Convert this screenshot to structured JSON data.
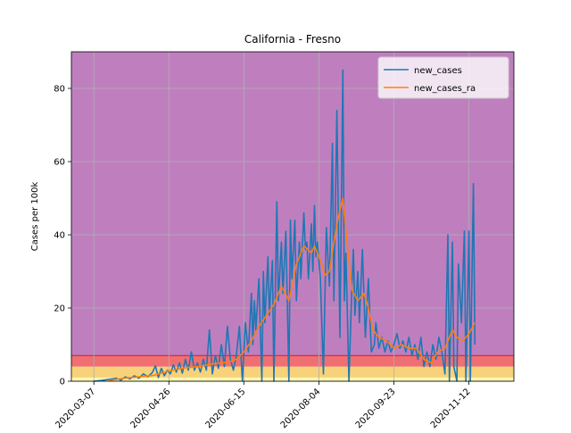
{
  "chart_data": {
    "type": "line",
    "title": "California - Fresno",
    "xlabel": "",
    "ylabel": "Cases per 100k",
    "x_axis": {
      "type": "date",
      "range": [
        "2020-02-21",
        "2020-12-12"
      ],
      "tick_labels": [
        "2020-03-07",
        "2020-04-26",
        "2020-06-15",
        "2020-08-04",
        "2020-09-23",
        "2020-11-12"
      ]
    },
    "ylim": [
      0,
      90
    ],
    "y_ticks": [
      0,
      20,
      40,
      60,
      80
    ],
    "grid": true,
    "legend": {
      "placement": "top-right",
      "entries": [
        "new_cases",
        "new_cases_ra"
      ]
    },
    "background_bands": [
      {
        "from": 0,
        "to": 1,
        "color": "#fff9b0"
      },
      {
        "from": 1,
        "to": 4,
        "color": "#f7d27a"
      },
      {
        "from": 4,
        "to": 7,
        "color": "#ef6f73"
      },
      {
        "from": 7,
        "to": 90,
        "color": "#bf7fbf"
      }
    ],
    "band_edge_color": "#d62728",
    "series": [
      {
        "name": "new_cases",
        "color": "#1f77b4",
        "points": [
          [
            "2020-03-07",
            0
          ],
          [
            "2020-03-12",
            0.2
          ],
          [
            "2020-03-17",
            0.5
          ],
          [
            "2020-03-22",
            0.8
          ],
          [
            "2020-03-25",
            0.3
          ],
          [
            "2020-03-28",
            1.2
          ],
          [
            "2020-03-31",
            0.6
          ],
          [
            "2020-04-03",
            1.5
          ],
          [
            "2020-04-06",
            0.8
          ],
          [
            "2020-04-09",
            2
          ],
          [
            "2020-04-12",
            1.2
          ],
          [
            "2020-04-15",
            2.4
          ],
          [
            "2020-04-17",
            4.2
          ],
          [
            "2020-04-19",
            1
          ],
          [
            "2020-04-21",
            3.5
          ],
          [
            "2020-04-23",
            1.5
          ],
          [
            "2020-04-25",
            3
          ],
          [
            "2020-04-27",
            2
          ],
          [
            "2020-04-29",
            4.5
          ],
          [
            "2020-05-01",
            2.5
          ],
          [
            "2020-05-03",
            5
          ],
          [
            "2020-05-05",
            2.2
          ],
          [
            "2020-05-07",
            6
          ],
          [
            "2020-05-09",
            3
          ],
          [
            "2020-05-11",
            8
          ],
          [
            "2020-05-13",
            3
          ],
          [
            "2020-05-15",
            5
          ],
          [
            "2020-05-17",
            2.5
          ],
          [
            "2020-05-19",
            6
          ],
          [
            "2020-05-21",
            3
          ],
          [
            "2020-05-23",
            14
          ],
          [
            "2020-05-25",
            2
          ],
          [
            "2020-05-27",
            7
          ],
          [
            "2020-05-29",
            3.5
          ],
          [
            "2020-05-31",
            10
          ],
          [
            "2020-06-02",
            4
          ],
          [
            "2020-06-04",
            15
          ],
          [
            "2020-06-06",
            6
          ],
          [
            "2020-06-08",
            3
          ],
          [
            "2020-06-10",
            7
          ],
          [
            "2020-06-12",
            15
          ],
          [
            "2020-06-14",
            0
          ],
          [
            "2020-06-16",
            16
          ],
          [
            "2020-06-18",
            8
          ],
          [
            "2020-06-20",
            24
          ],
          [
            "2020-06-21",
            10
          ],
          [
            "2020-06-22",
            22
          ],
          [
            "2020-06-23",
            14
          ],
          [
            "2020-06-25",
            28
          ],
          [
            "2020-06-27",
            0
          ],
          [
            "2020-06-28",
            30
          ],
          [
            "2020-06-29",
            16
          ],
          [
            "2020-07-01",
            34
          ],
          [
            "2020-07-02",
            18
          ],
          [
            "2020-07-04",
            33
          ],
          [
            "2020-07-05",
            0
          ],
          [
            "2020-07-07",
            49
          ],
          [
            "2020-07-08",
            22
          ],
          [
            "2020-07-10",
            38
          ],
          [
            "2020-07-11",
            24
          ],
          [
            "2020-07-13",
            41
          ],
          [
            "2020-07-15",
            0
          ],
          [
            "2020-07-16",
            44
          ],
          [
            "2020-07-17",
            28
          ],
          [
            "2020-07-19",
            44
          ],
          [
            "2020-07-20",
            22
          ],
          [
            "2020-07-22",
            38
          ],
          [
            "2020-07-23",
            28
          ],
          [
            "2020-07-25",
            46
          ],
          [
            "2020-07-26",
            36
          ],
          [
            "2020-07-27",
            38
          ],
          [
            "2020-07-28",
            28
          ],
          [
            "2020-07-30",
            43
          ],
          [
            "2020-07-31",
            30
          ],
          [
            "2020-08-01",
            48
          ],
          [
            "2020-08-02",
            34
          ],
          [
            "2020-08-03",
            38
          ],
          [
            "2020-08-05",
            28
          ],
          [
            "2020-08-07",
            2
          ],
          [
            "2020-08-09",
            42
          ],
          [
            "2020-08-11",
            26
          ],
          [
            "2020-08-13",
            65
          ],
          [
            "2020-08-14",
            22
          ],
          [
            "2020-08-16",
            74
          ],
          [
            "2020-08-18",
            12
          ],
          [
            "2020-08-20",
            85
          ],
          [
            "2020-08-21",
            22
          ],
          [
            "2020-08-22",
            35
          ],
          [
            "2020-08-24",
            0
          ],
          [
            "2020-08-26",
            26
          ],
          [
            "2020-08-27",
            36
          ],
          [
            "2020-08-28",
            18
          ],
          [
            "2020-08-30",
            30
          ],
          [
            "2020-08-31",
            16
          ],
          [
            "2020-09-02",
            36
          ],
          [
            "2020-09-04",
            12
          ],
          [
            "2020-09-06",
            28
          ],
          [
            "2020-09-08",
            8
          ],
          [
            "2020-09-10",
            10
          ],
          [
            "2020-09-11",
            16
          ],
          [
            "2020-09-13",
            9
          ],
          [
            "2020-09-15",
            12
          ],
          [
            "2020-09-17",
            8
          ],
          [
            "2020-09-19",
            11
          ],
          [
            "2020-09-21",
            8
          ],
          [
            "2020-09-23",
            10
          ],
          [
            "2020-09-25",
            13
          ],
          [
            "2020-09-27",
            9
          ],
          [
            "2020-09-29",
            11
          ],
          [
            "2020-10-01",
            8
          ],
          [
            "2020-10-03",
            12
          ],
          [
            "2020-10-05",
            7
          ],
          [
            "2020-10-07",
            10
          ],
          [
            "2020-10-09",
            6
          ],
          [
            "2020-10-11",
            12
          ],
          [
            "2020-10-13",
            4
          ],
          [
            "2020-10-15",
            8
          ],
          [
            "2020-10-17",
            4
          ],
          [
            "2020-10-19",
            10
          ],
          [
            "2020-10-21",
            6
          ],
          [
            "2020-10-23",
            12
          ],
          [
            "2020-10-25",
            8
          ],
          [
            "2020-10-27",
            2
          ],
          [
            "2020-10-29",
            40
          ],
          [
            "2020-10-30",
            0
          ],
          [
            "2020-11-01",
            38
          ],
          [
            "2020-11-02",
            4
          ],
          [
            "2020-11-04",
            0
          ],
          [
            "2020-11-05",
            32
          ],
          [
            "2020-11-07",
            16
          ],
          [
            "2020-11-09",
            41
          ],
          [
            "2020-11-10",
            0
          ],
          [
            "2020-11-12",
            41
          ],
          [
            "2020-11-13",
            0
          ],
          [
            "2020-11-15",
            54
          ],
          [
            "2020-11-16",
            10
          ]
        ]
      },
      {
        "name": "new_cases_ra",
        "color": "#ff7f0e",
        "points": [
          [
            "2020-03-17",
            0.2
          ],
          [
            "2020-03-27",
            0.8
          ],
          [
            "2020-04-06",
            1.2
          ],
          [
            "2020-04-16",
            1.6
          ],
          [
            "2020-04-26",
            2.8
          ],
          [
            "2020-05-06",
            3.6
          ],
          [
            "2020-05-16",
            4
          ],
          [
            "2020-05-26",
            4.8
          ],
          [
            "2020-06-05",
            5.2
          ],
          [
            "2020-06-10",
            6
          ],
          [
            "2020-06-15",
            8
          ],
          [
            "2020-06-20",
            11
          ],
          [
            "2020-06-25",
            15
          ],
          [
            "2020-06-30",
            18
          ],
          [
            "2020-07-05",
            21
          ],
          [
            "2020-07-10",
            26
          ],
          [
            "2020-07-15",
            22
          ],
          [
            "2020-07-20",
            32
          ],
          [
            "2020-07-25",
            37
          ],
          [
            "2020-07-30",
            35
          ],
          [
            "2020-08-01",
            37
          ],
          [
            "2020-08-05",
            33
          ],
          [
            "2020-08-08",
            29
          ],
          [
            "2020-08-11",
            30
          ],
          [
            "2020-08-14",
            38
          ],
          [
            "2020-08-17",
            45
          ],
          [
            "2020-08-20",
            50
          ],
          [
            "2020-08-23",
            37
          ],
          [
            "2020-08-26",
            25
          ],
          [
            "2020-08-30",
            22
          ],
          [
            "2020-09-03",
            24
          ],
          [
            "2020-09-06",
            20
          ],
          [
            "2020-09-09",
            14
          ],
          [
            "2020-09-13",
            12
          ],
          [
            "2020-09-18",
            11
          ],
          [
            "2020-09-23",
            9
          ],
          [
            "2020-09-28",
            10
          ],
          [
            "2020-10-03",
            9
          ],
          [
            "2020-10-08",
            9
          ],
          [
            "2020-10-13",
            6
          ],
          [
            "2020-10-18",
            5
          ],
          [
            "2020-10-22",
            8
          ],
          [
            "2020-10-27",
            9
          ],
          [
            "2020-11-01",
            14
          ],
          [
            "2020-11-04",
            12
          ],
          [
            "2020-11-08",
            11
          ],
          [
            "2020-11-12",
            13
          ],
          [
            "2020-11-16",
            16
          ]
        ]
      }
    ]
  }
}
